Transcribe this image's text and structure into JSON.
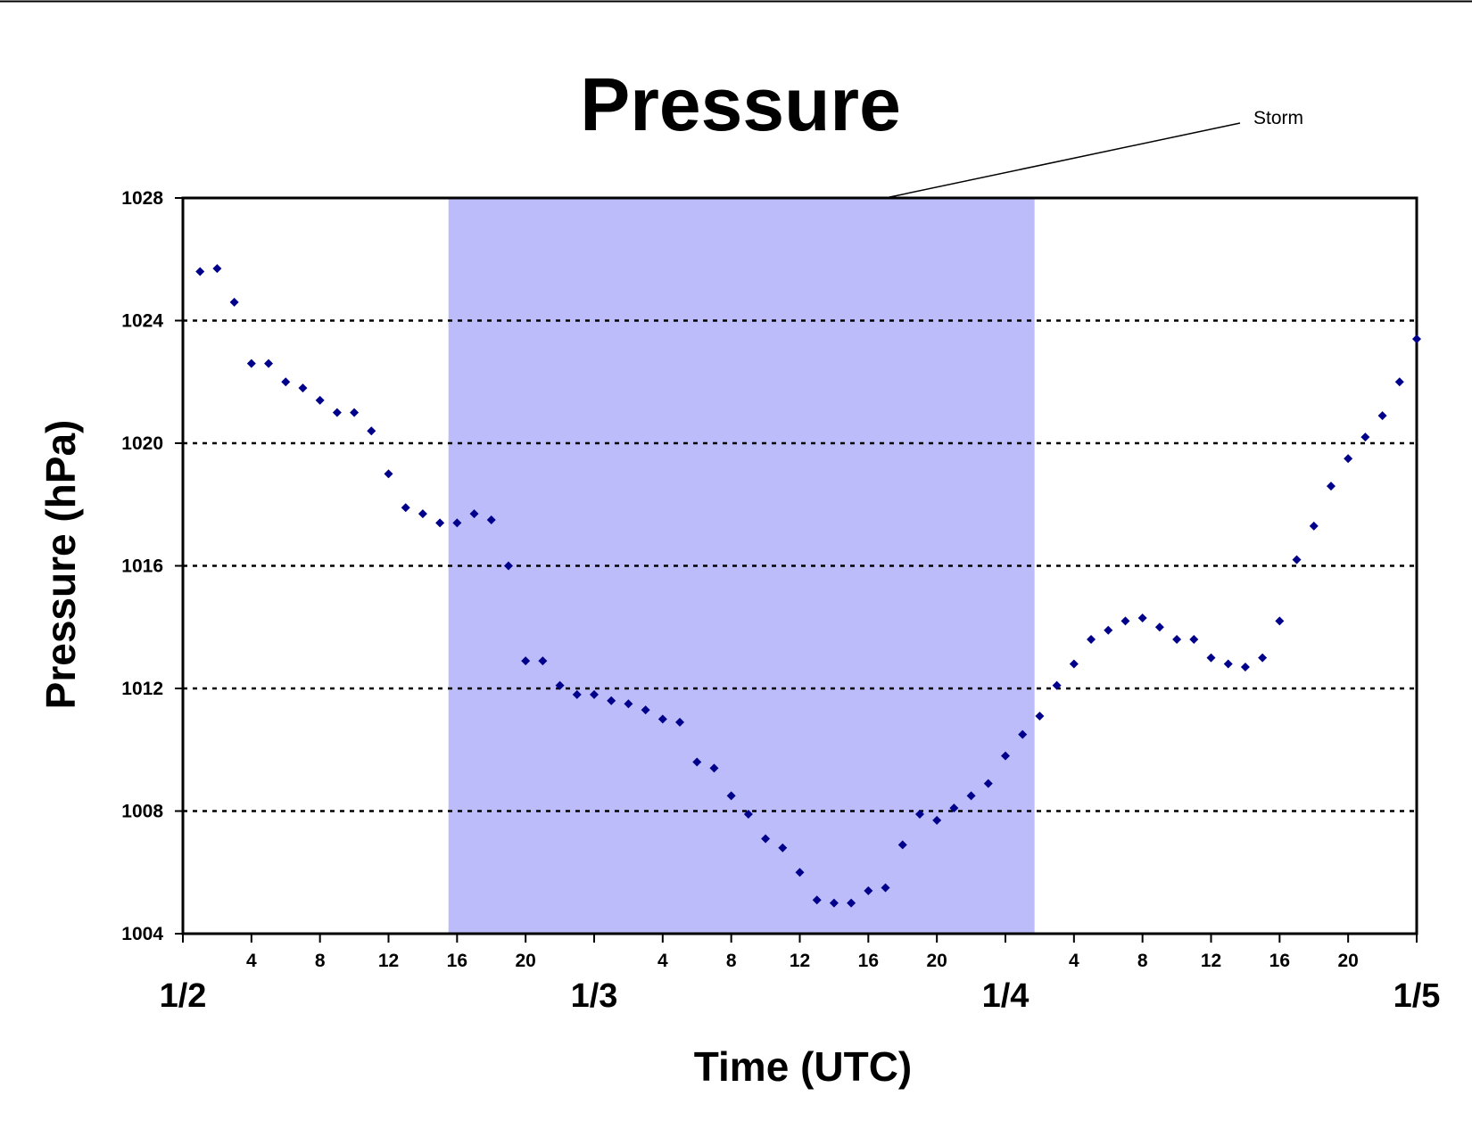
{
  "chart_data": {
    "type": "scatter",
    "title": "Pressure",
    "xlabel": "Time (UTC)",
    "ylabel": "Pressure (hPa)",
    "ylim": [
      1004,
      1028
    ],
    "yticks": [
      1004,
      1008,
      1012,
      1016,
      1020,
      1024,
      1028
    ],
    "xlim": [
      0,
      72
    ],
    "hour_ticks": [
      {
        "x": 4,
        "label": "4"
      },
      {
        "x": 8,
        "label": "8"
      },
      {
        "x": 12,
        "label": "12"
      },
      {
        "x": 16,
        "label": "16"
      },
      {
        "x": 20,
        "label": "20"
      },
      {
        "x": 28,
        "label": "4"
      },
      {
        "x": 32,
        "label": "8"
      },
      {
        "x": 36,
        "label": "12"
      },
      {
        "x": 40,
        "label": "16"
      },
      {
        "x": 44,
        "label": "20"
      },
      {
        "x": 52,
        "label": "4"
      },
      {
        "x": 56,
        "label": "8"
      },
      {
        "x": 60,
        "label": "12"
      },
      {
        "x": 64,
        "label": "16"
      },
      {
        "x": 68,
        "label": "20"
      }
    ],
    "day_ticks": [
      {
        "x": 0,
        "label": "1/2"
      },
      {
        "x": 24,
        "label": "1/3"
      },
      {
        "x": 48,
        "label": "1/4"
      },
      {
        "x": 72,
        "label": "1/5"
      }
    ],
    "minor_ticks": [
      24,
      48
    ],
    "grid": "horizontal dotted",
    "shaded_region": {
      "from": 15.5,
      "to": 49.7,
      "color": "#bcbcfa"
    },
    "annotation": {
      "text": "Storm"
    },
    "marker_color": "#00008b",
    "points": [
      [
        1,
        1025.6
      ],
      [
        2,
        1025.7
      ],
      [
        3,
        1024.6
      ],
      [
        4,
        1022.6
      ],
      [
        5,
        1022.6
      ],
      [
        6,
        1022.0
      ],
      [
        7,
        1021.8
      ],
      [
        8,
        1021.4
      ],
      [
        9,
        1021.0
      ],
      [
        10,
        1021.0
      ],
      [
        11,
        1020.4
      ],
      [
        12,
        1019.0
      ],
      [
        13,
        1017.9
      ],
      [
        14,
        1017.7
      ],
      [
        15,
        1017.4
      ],
      [
        16,
        1017.4
      ],
      [
        17,
        1017.7
      ],
      [
        18,
        1017.5
      ],
      [
        19,
        1016.0
      ],
      [
        20,
        1012.9
      ],
      [
        21,
        1012.9
      ],
      [
        22,
        1012.1
      ],
      [
        23,
        1011.8
      ],
      [
        24,
        1011.8
      ],
      [
        25,
        1011.6
      ],
      [
        26,
        1011.5
      ],
      [
        27,
        1011.3
      ],
      [
        28,
        1011.0
      ],
      [
        29,
        1010.9
      ],
      [
        30,
        1009.6
      ],
      [
        31,
        1009.4
      ],
      [
        32,
        1008.5
      ],
      [
        33,
        1007.9
      ],
      [
        34,
        1007.1
      ],
      [
        35,
        1006.8
      ],
      [
        36,
        1006.0
      ],
      [
        37,
        1005.1
      ],
      [
        38,
        1005.0
      ],
      [
        39,
        1005.0
      ],
      [
        40,
        1005.4
      ],
      [
        41,
        1005.5
      ],
      [
        42,
        1006.9
      ],
      [
        43,
        1007.9
      ],
      [
        44,
        1007.7
      ],
      [
        45,
        1008.1
      ],
      [
        46,
        1008.5
      ],
      [
        47,
        1008.9
      ],
      [
        48,
        1009.8
      ],
      [
        49,
        1010.5
      ],
      [
        50,
        1011.1
      ],
      [
        51,
        1012.1
      ],
      [
        52,
        1012.8
      ],
      [
        53,
        1013.6
      ],
      [
        54,
        1013.9
      ],
      [
        55,
        1014.2
      ],
      [
        56,
        1014.3
      ],
      [
        57,
        1014.0
      ],
      [
        58,
        1013.6
      ],
      [
        59,
        1013.6
      ],
      [
        60,
        1013.0
      ],
      [
        61,
        1012.8
      ],
      [
        62,
        1012.7
      ],
      [
        63,
        1013.0
      ],
      [
        64,
        1014.2
      ],
      [
        65,
        1016.2
      ],
      [
        66,
        1017.3
      ],
      [
        67,
        1018.6
      ],
      [
        68,
        1019.5
      ],
      [
        69,
        1020.2
      ],
      [
        70,
        1020.9
      ],
      [
        71,
        1022.0
      ],
      [
        72,
        1023.4
      ]
    ]
  }
}
